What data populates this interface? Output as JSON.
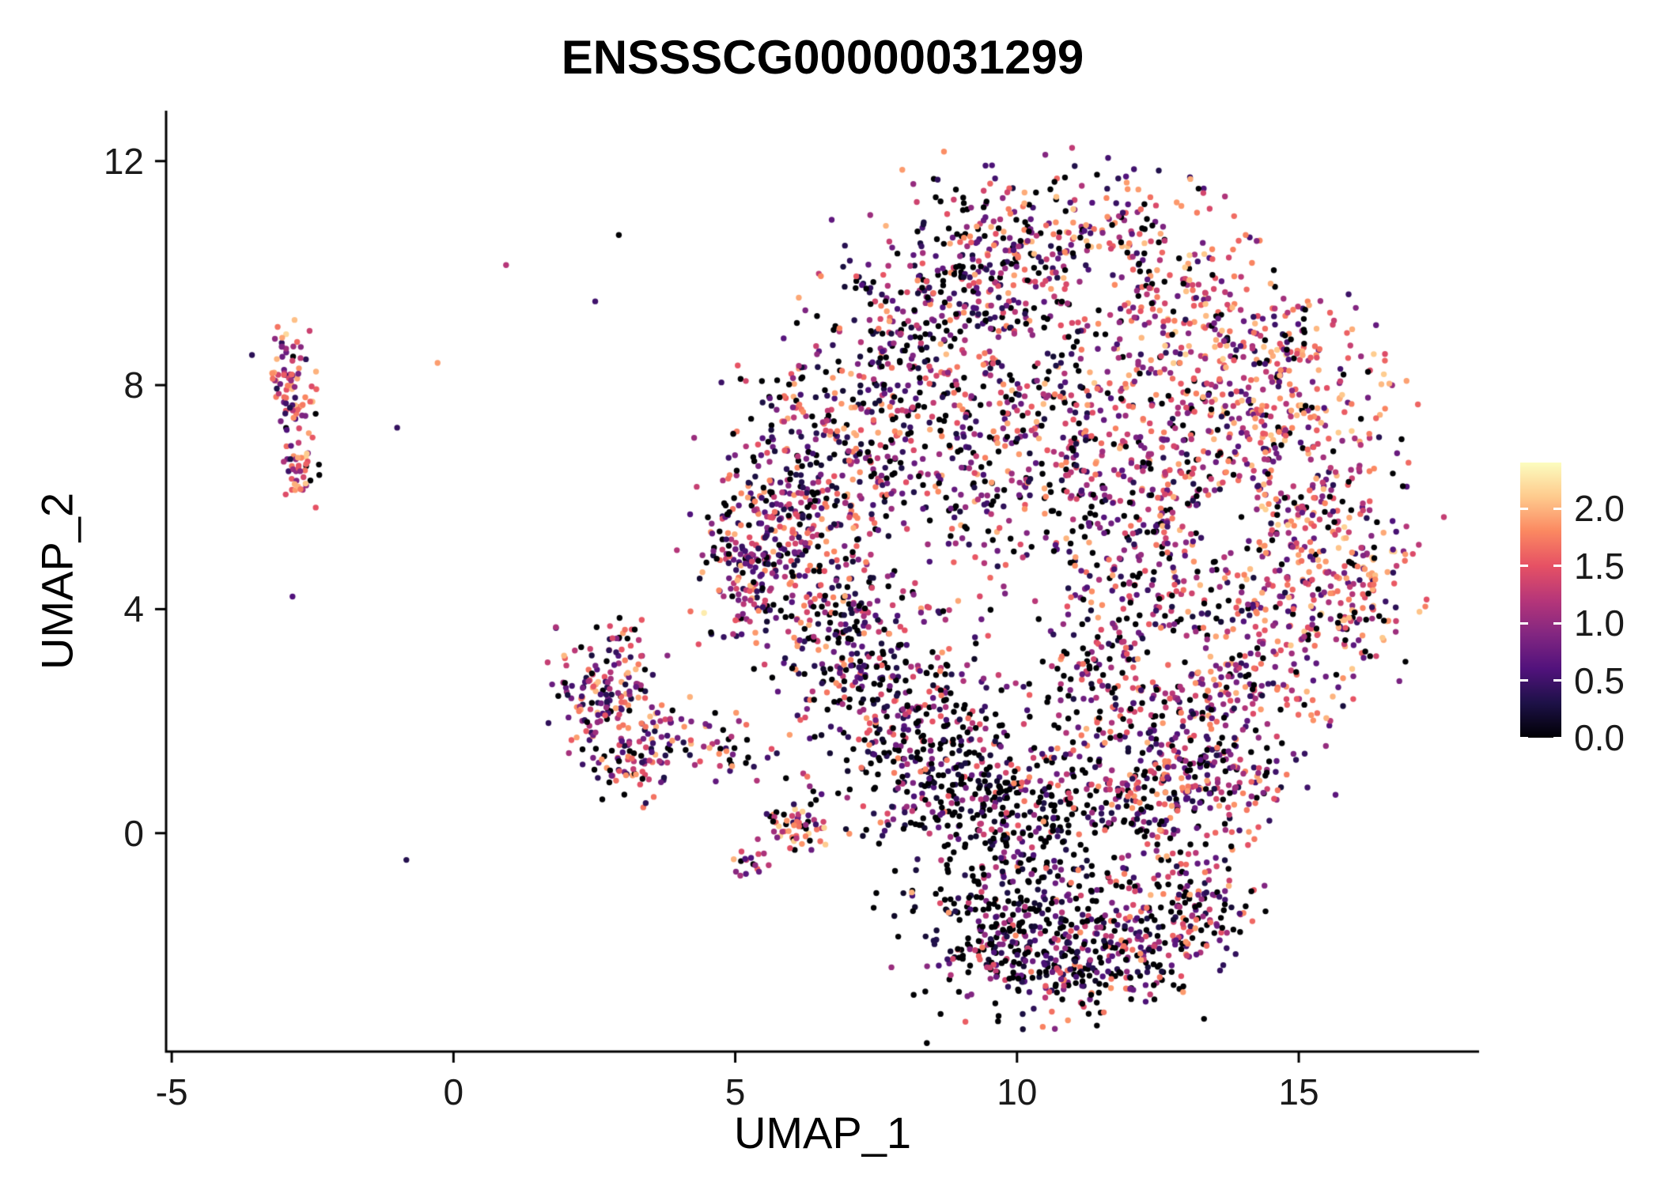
{
  "chart_data": {
    "type": "scatter",
    "title": "ENSSSCG00000031299",
    "xlabel": "UMAP_1",
    "ylabel": "UMAP_2",
    "xlim": [
      -5.1,
      18.2
    ],
    "ylim": [
      -3.9,
      12.9
    ],
    "x_ticks": [
      {
        "value": -5,
        "label": "-5"
      },
      {
        "value": 0,
        "label": "0"
      },
      {
        "value": 5,
        "label": "5"
      },
      {
        "value": 10,
        "label": "10"
      },
      {
        "value": 15,
        "label": "15"
      }
    ],
    "y_ticks": [
      {
        "value": 0,
        "label": "0"
      },
      {
        "value": 4,
        "label": "4"
      },
      {
        "value": 8,
        "label": "8"
      },
      {
        "value": 12,
        "label": "12"
      }
    ],
    "grid": false,
    "legend_position": "right",
    "point_radius_px": 3.7,
    "seed": 42,
    "colorbar": {
      "colormap": "magma",
      "domain": [
        0,
        2.4
      ],
      "tick_values": [
        2.0,
        1.5,
        1.0,
        0.5,
        0.0
      ],
      "tick_labels": [
        "2.0",
        "1.5",
        "1.0",
        "0.5",
        "0.0"
      ],
      "stops": [
        [
          0.0,
          "#000004"
        ],
        [
          0.125,
          "#1d1147"
        ],
        [
          0.25,
          "#51127c"
        ],
        [
          0.375,
          "#822681"
        ],
        [
          0.5,
          "#b63679"
        ],
        [
          0.625,
          "#e65164"
        ],
        [
          0.75,
          "#fb8861"
        ],
        [
          0.875,
          "#feca8d"
        ],
        [
          1.0,
          "#fcfdbf"
        ]
      ]
    },
    "cluster_fields": [
      "cx",
      "cy",
      "rx",
      "ry",
      "n",
      "zero_frac",
      "vmin",
      "vmax",
      "shape"
    ],
    "clusters": [
      [
        -2.92,
        8.3,
        0.2,
        0.42,
        55,
        0.1,
        0.3,
        2.2,
        0.9
      ],
      [
        -2.8,
        7.55,
        0.15,
        0.28,
        30,
        0.1,
        0.3,
        2.2,
        0.9
      ],
      [
        -2.72,
        6.45,
        0.17,
        0.3,
        38,
        0.1,
        0.3,
        2.2,
        0.9
      ],
      [
        2.75,
        2.6,
        0.5,
        0.55,
        150,
        0.15,
        0.25,
        2.1,
        1.15
      ],
      [
        3.4,
        1.8,
        0.75,
        0.25,
        65,
        0.15,
        0.25,
        2.1,
        1.15
      ],
      [
        3.1,
        1.15,
        0.4,
        0.3,
        55,
        0.15,
        0.25,
        2.1,
        1.1
      ],
      [
        4.9,
        1.35,
        0.5,
        0.3,
        30,
        0.2,
        0.25,
        2.0,
        1.1
      ],
      [
        6.05,
        0.15,
        0.32,
        0.27,
        60,
        0.12,
        0.3,
        2.2,
        0.85
      ],
      [
        5.35,
        -0.55,
        0.22,
        0.2,
        16,
        0.15,
        0.3,
        2.1,
        0.9
      ],
      [
        4.35,
        3.85,
        0.05,
        0.05,
        1,
        0.0,
        2.3,
        2.3,
        1.0
      ],
      [
        9.6,
        10.2,
        1.05,
        0.75,
        240,
        0.3,
        0.2,
        2.0,
        1.2
      ],
      [
        11.5,
        10.5,
        0.95,
        0.65,
        190,
        0.15,
        0.3,
        2.1,
        0.85
      ],
      [
        12.9,
        9.3,
        0.85,
        0.75,
        170,
        0.13,
        0.3,
        2.15,
        0.8
      ],
      [
        8.4,
        8.9,
        0.9,
        0.85,
        210,
        0.3,
        0.2,
        2.0,
        1.2
      ],
      [
        7.0,
        7.3,
        0.95,
        0.85,
        240,
        0.22,
        0.2,
        2.0,
        1.2
      ],
      [
        6.0,
        5.7,
        0.75,
        0.85,
        230,
        0.22,
        0.2,
        2.0,
        1.3
      ],
      [
        5.3,
        4.7,
        0.5,
        0.65,
        140,
        0.2,
        0.2,
        2.0,
        1.25
      ],
      [
        6.9,
        3.7,
        0.75,
        0.85,
        220,
        0.25,
        0.2,
        2.0,
        1.25
      ],
      [
        7.9,
        2.1,
        0.75,
        0.85,
        200,
        0.4,
        0.15,
        1.9,
        1.4
      ],
      [
        8.9,
        0.9,
        0.85,
        0.85,
        240,
        0.47,
        0.15,
        1.8,
        1.5
      ],
      [
        10.1,
        0.3,
        0.85,
        0.75,
        220,
        0.45,
        0.15,
        1.8,
        1.45
      ],
      [
        9.3,
        6.3,
        1.15,
        1.05,
        190,
        0.3,
        0.2,
        2.0,
        1.1
      ],
      [
        10.8,
        7.7,
        1.05,
        0.85,
        180,
        0.25,
        0.2,
        2.05,
        1.0
      ],
      [
        11.3,
        5.0,
        1.15,
        1.05,
        160,
        0.28,
        0.2,
        2.0,
        1.05
      ],
      [
        12.4,
        6.4,
        0.95,
        0.85,
        160,
        0.22,
        0.2,
        2.05,
        0.95
      ],
      [
        14.3,
        7.4,
        1.05,
        0.95,
        220,
        0.12,
        0.3,
        2.15,
        0.8
      ],
      [
        15.3,
        5.6,
        0.85,
        1.05,
        220,
        0.12,
        0.3,
        2.15,
        0.8
      ],
      [
        15.8,
        4.2,
        0.6,
        0.7,
        130,
        0.13,
        0.3,
        2.1,
        0.85
      ],
      [
        14.2,
        3.2,
        0.95,
        0.85,
        160,
        0.15,
        0.25,
        2.1,
        0.9
      ],
      [
        13.2,
        4.9,
        0.85,
        0.8,
        110,
        0.2,
        0.2,
        2.0,
        1.0
      ],
      [
        12.9,
        1.9,
        0.95,
        0.75,
        180,
        0.25,
        0.2,
        2.0,
        1.0
      ],
      [
        11.7,
        2.9,
        0.85,
        0.75,
        140,
        0.3,
        0.2,
        2.0,
        1.1
      ],
      [
        14.9,
        8.5,
        0.75,
        0.6,
        110,
        0.12,
        0.3,
        2.15,
        0.8
      ],
      [
        12.1,
        0.4,
        0.95,
        0.65,
        190,
        0.3,
        0.2,
        2.0,
        1.1
      ],
      [
        13.4,
        0.9,
        0.65,
        0.55,
        110,
        0.25,
        0.2,
        2.0,
        1.0
      ],
      [
        9.6,
        -1.8,
        0.7,
        0.6,
        210,
        0.55,
        0.15,
        1.6,
        1.6
      ],
      [
        10.9,
        -2.3,
        0.8,
        0.48,
        190,
        0.45,
        0.15,
        1.9,
        1.3
      ],
      [
        12.3,
        -1.9,
        0.75,
        0.5,
        150,
        0.3,
        0.2,
        2.0,
        1.0
      ],
      [
        13.3,
        -1.3,
        0.45,
        0.4,
        75,
        0.28,
        0.2,
        2.0,
        1.0
      ],
      [
        11.3,
        -0.9,
        1.2,
        0.35,
        55,
        0.35,
        0.2,
        1.9,
        1.1
      ],
      [
        10.5,
        5.0,
        5.5,
        4.5,
        50,
        0.3,
        0.2,
        2.0,
        1.0
      ]
    ],
    "hole_fields": [
      "hx",
      "hy",
      "hrx",
      "hry"
    ],
    "holes": [
      [
        11.5,
        9.85,
        0.6,
        0.5
      ],
      [
        9.95,
        3.4,
        0.65,
        0.55
      ],
      [
        12.7,
        3.15,
        0.55,
        0.45
      ],
      [
        13.7,
        5.55,
        0.55,
        0.5
      ],
      [
        10.35,
        4.55,
        0.5,
        0.4
      ],
      [
        8.6,
        4.4,
        0.4,
        0.35
      ],
      [
        14.9,
        6.4,
        0.4,
        0.35
      ]
    ]
  }
}
